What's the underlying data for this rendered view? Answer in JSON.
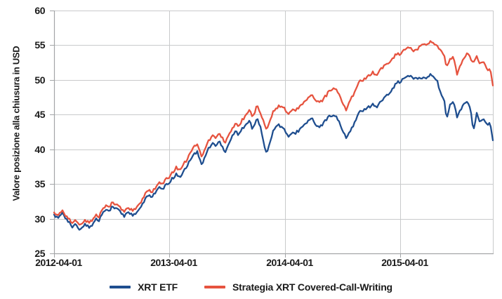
{
  "chart_data": {
    "type": "line",
    "title": "",
    "y_axis": {
      "label": "Valore posizione alla chiusura in USD",
      "min": 25,
      "max": 60,
      "ticks": [
        25,
        30,
        35,
        40,
        45,
        50,
        55,
        60
      ]
    },
    "x_axis": {
      "label": "",
      "tick_labels": [
        "2012-04-01",
        "2013-04-01",
        "2014-04-01",
        "2015-04-01"
      ],
      "tick_positions_years": [
        0,
        1,
        2,
        3
      ],
      "range_years": [
        0,
        3.8
      ]
    },
    "grid": true,
    "legend_position": "bottom",
    "noise_amplitude": 0.24,
    "series": [
      {
        "name": "XRT ETF",
        "color": "#1F4E8F",
        "points": [
          [
            0.0,
            30.6
          ],
          [
            0.04,
            30.1
          ],
          [
            0.07,
            31.0
          ],
          [
            0.1,
            30.2
          ],
          [
            0.13,
            29.4
          ],
          [
            0.16,
            28.7
          ],
          [
            0.19,
            29.3
          ],
          [
            0.22,
            28.4
          ],
          [
            0.25,
            28.8
          ],
          [
            0.27,
            29.5
          ],
          [
            0.3,
            28.6
          ],
          [
            0.33,
            29.2
          ],
          [
            0.36,
            29.9
          ],
          [
            0.39,
            29.6
          ],
          [
            0.42,
            30.8
          ],
          [
            0.45,
            31.5
          ],
          [
            0.47,
            31.0
          ],
          [
            0.5,
            31.7
          ],
          [
            0.53,
            31.2
          ],
          [
            0.55,
            31.6
          ],
          [
            0.58,
            30.9
          ],
          [
            0.61,
            30.4
          ],
          [
            0.64,
            31.1
          ],
          [
            0.67,
            30.6
          ],
          [
            0.7,
            30.4
          ],
          [
            0.73,
            31.2
          ],
          [
            0.76,
            31.9
          ],
          [
            0.79,
            32.7
          ],
          [
            0.82,
            33.4
          ],
          [
            0.85,
            33.1
          ],
          [
            0.88,
            33.9
          ],
          [
            0.91,
            34.4
          ],
          [
            0.94,
            34.1
          ],
          [
            0.97,
            34.8
          ],
          [
            1.0,
            35.3
          ],
          [
            1.03,
            35.9
          ],
          [
            1.06,
            36.4
          ],
          [
            1.09,
            36.0
          ],
          [
            1.12,
            36.9
          ],
          [
            1.15,
            37.7
          ],
          [
            1.18,
            38.5
          ],
          [
            1.21,
            39.2
          ],
          [
            1.24,
            39.6
          ],
          [
            1.26,
            38.4
          ],
          [
            1.28,
            37.8
          ],
          [
            1.31,
            39.0
          ],
          [
            1.34,
            40.1
          ],
          [
            1.37,
            40.9
          ],
          [
            1.4,
            40.4
          ],
          [
            1.43,
            41.2
          ],
          [
            1.46,
            40.5
          ],
          [
            1.48,
            39.7
          ],
          [
            1.51,
            40.8
          ],
          [
            1.54,
            41.9
          ],
          [
            1.57,
            42.6
          ],
          [
            1.6,
            42.0
          ],
          [
            1.63,
            43.0
          ],
          [
            1.66,
            43.6
          ],
          [
            1.69,
            44.1
          ],
          [
            1.72,
            43.1
          ],
          [
            1.74,
            43.9
          ],
          [
            1.76,
            44.3
          ],
          [
            1.79,
            43.0
          ],
          [
            1.82,
            40.2
          ],
          [
            1.84,
            39.5
          ],
          [
            1.87,
            41.2
          ],
          [
            1.9,
            42.6
          ],
          [
            1.93,
            43.6
          ],
          [
            1.96,
            43.4
          ],
          [
            2.0,
            42.6
          ],
          [
            2.03,
            41.7
          ],
          [
            2.06,
            42.1
          ],
          [
            2.1,
            42.6
          ],
          [
            2.14,
            43.1
          ],
          [
            2.18,
            43.8
          ],
          [
            2.22,
            44.5
          ],
          [
            2.26,
            43.6
          ],
          [
            2.3,
            43.2
          ],
          [
            2.34,
            43.9
          ],
          [
            2.38,
            44.6
          ],
          [
            2.42,
            44.9
          ],
          [
            2.46,
            44.2
          ],
          [
            2.5,
            42.8
          ],
          [
            2.53,
            41.4
          ],
          [
            2.56,
            42.4
          ],
          [
            2.6,
            43.8
          ],
          [
            2.64,
            45.1
          ],
          [
            2.68,
            45.6
          ],
          [
            2.72,
            46.0
          ],
          [
            2.76,
            46.5
          ],
          [
            2.8,
            46.1
          ],
          [
            2.84,
            47.1
          ],
          [
            2.88,
            47.9
          ],
          [
            2.92,
            48.6
          ],
          [
            2.96,
            49.4
          ],
          [
            3.0,
            49.9
          ],
          [
            3.04,
            50.2
          ],
          [
            3.08,
            50.6
          ],
          [
            3.11,
            50.2
          ],
          [
            3.14,
            50.5
          ],
          [
            3.18,
            50.1
          ],
          [
            3.22,
            50.4
          ],
          [
            3.26,
            50.8
          ],
          [
            3.29,
            50.5
          ],
          [
            3.32,
            49.6
          ],
          [
            3.35,
            47.8
          ],
          [
            3.38,
            47.0
          ],
          [
            3.4,
            44.4
          ],
          [
            3.43,
            46.4
          ],
          [
            3.46,
            46.9
          ],
          [
            3.49,
            44.6
          ],
          [
            3.52,
            45.6
          ],
          [
            3.55,
            46.3
          ],
          [
            3.58,
            47.0
          ],
          [
            3.61,
            45.6
          ],
          [
            3.63,
            42.6
          ],
          [
            3.66,
            45.1
          ],
          [
            3.69,
            44.1
          ],
          [
            3.72,
            44.4
          ],
          [
            3.75,
            43.5
          ],
          [
            3.77,
            43.9
          ],
          [
            3.79,
            42.5
          ],
          [
            3.8,
            41.3
          ]
        ]
      },
      {
        "name": "Strategia XRT Covered-Call-Writing",
        "color": "#E6533F",
        "points": [
          [
            0.0,
            30.9
          ],
          [
            0.04,
            30.5
          ],
          [
            0.07,
            31.3
          ],
          [
            0.1,
            30.6
          ],
          [
            0.13,
            29.9
          ],
          [
            0.16,
            29.3
          ],
          [
            0.19,
            29.8
          ],
          [
            0.22,
            29.1
          ],
          [
            0.25,
            29.4
          ],
          [
            0.27,
            30.0
          ],
          [
            0.3,
            29.3
          ],
          [
            0.33,
            29.9
          ],
          [
            0.36,
            30.5
          ],
          [
            0.39,
            30.2
          ],
          [
            0.42,
            31.4
          ],
          [
            0.45,
            32.1
          ],
          [
            0.47,
            31.6
          ],
          [
            0.5,
            32.3
          ],
          [
            0.53,
            31.8
          ],
          [
            0.55,
            32.2
          ],
          [
            0.58,
            31.5
          ],
          [
            0.61,
            31.1
          ],
          [
            0.64,
            31.7
          ],
          [
            0.67,
            31.3
          ],
          [
            0.7,
            31.1
          ],
          [
            0.73,
            31.9
          ],
          [
            0.76,
            32.6
          ],
          [
            0.79,
            33.4
          ],
          [
            0.82,
            34.1
          ],
          [
            0.85,
            33.8
          ],
          [
            0.88,
            34.6
          ],
          [
            0.91,
            35.1
          ],
          [
            0.94,
            34.9
          ],
          [
            0.97,
            35.6
          ],
          [
            1.0,
            36.2
          ],
          [
            1.03,
            36.8
          ],
          [
            1.06,
            37.3
          ],
          [
            1.09,
            37.0
          ],
          [
            1.12,
            37.9
          ],
          [
            1.15,
            38.7
          ],
          [
            1.18,
            39.5
          ],
          [
            1.21,
            40.3
          ],
          [
            1.24,
            40.7
          ],
          [
            1.26,
            39.6
          ],
          [
            1.28,
            39.0
          ],
          [
            1.31,
            40.1
          ],
          [
            1.34,
            41.2
          ],
          [
            1.37,
            42.0
          ],
          [
            1.4,
            41.6
          ],
          [
            1.43,
            42.3
          ],
          [
            1.46,
            41.8
          ],
          [
            1.48,
            41.1
          ],
          [
            1.51,
            42.1
          ],
          [
            1.54,
            43.0
          ],
          [
            1.57,
            43.7
          ],
          [
            1.6,
            43.2
          ],
          [
            1.63,
            44.2
          ],
          [
            1.66,
            44.9
          ],
          [
            1.69,
            45.6
          ],
          [
            1.72,
            44.9
          ],
          [
            1.74,
            45.6
          ],
          [
            1.76,
            46.2
          ],
          [
            1.79,
            45.0
          ],
          [
            1.82,
            43.5
          ],
          [
            1.84,
            42.9
          ],
          [
            1.87,
            44.3
          ],
          [
            1.9,
            45.4
          ],
          [
            1.93,
            46.1
          ],
          [
            1.96,
            46.3
          ],
          [
            2.0,
            45.7
          ],
          [
            2.03,
            45.0
          ],
          [
            2.06,
            45.4
          ],
          [
            2.1,
            45.9
          ],
          [
            2.14,
            46.4
          ],
          [
            2.18,
            47.1
          ],
          [
            2.22,
            47.9
          ],
          [
            2.26,
            47.1
          ],
          [
            2.3,
            46.8
          ],
          [
            2.34,
            47.4
          ],
          [
            2.38,
            48.2
          ],
          [
            2.42,
            48.8
          ],
          [
            2.46,
            48.1
          ],
          [
            2.5,
            46.8
          ],
          [
            2.53,
            45.4
          ],
          [
            2.56,
            46.8
          ],
          [
            2.6,
            48.2
          ],
          [
            2.64,
            49.5
          ],
          [
            2.68,
            50.0
          ],
          [
            2.72,
            50.5
          ],
          [
            2.76,
            51.1
          ],
          [
            2.8,
            50.7
          ],
          [
            2.84,
            51.8
          ],
          [
            2.88,
            52.4
          ],
          [
            2.92,
            53.0
          ],
          [
            2.96,
            53.5
          ],
          [
            3.0,
            53.9
          ],
          [
            3.04,
            54.3
          ],
          [
            3.08,
            54.7
          ],
          [
            3.11,
            54.2
          ],
          [
            3.14,
            54.6
          ],
          [
            3.18,
            54.9
          ],
          [
            3.22,
            55.2
          ],
          [
            3.26,
            55.6
          ],
          [
            3.29,
            55.3
          ],
          [
            3.32,
            54.7
          ],
          [
            3.35,
            54.1
          ],
          [
            3.38,
            53.5
          ],
          [
            3.4,
            51.9
          ],
          [
            3.43,
            52.9
          ],
          [
            3.46,
            53.3
          ],
          [
            3.49,
            50.7
          ],
          [
            3.52,
            52.1
          ],
          [
            3.55,
            52.9
          ],
          [
            3.58,
            54.0
          ],
          [
            3.61,
            53.0
          ],
          [
            3.63,
            52.5
          ],
          [
            3.66,
            53.4
          ],
          [
            3.69,
            52.4
          ],
          [
            3.72,
            52.7
          ],
          [
            3.75,
            51.4
          ],
          [
            3.77,
            51.7
          ],
          [
            3.79,
            50.5
          ],
          [
            3.8,
            49.2
          ]
        ]
      }
    ]
  },
  "colors": {
    "grid": "#c9cacb",
    "axis": "#a3a5a7",
    "text": "#1a1a1a",
    "background": "#ffffff"
  }
}
